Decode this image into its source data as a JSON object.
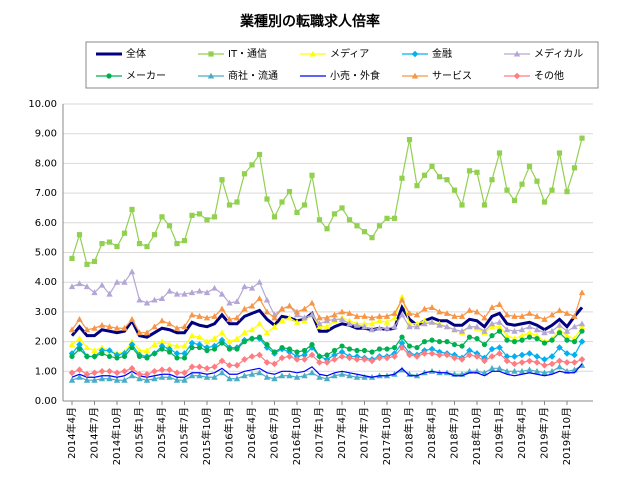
{
  "chart_data": {
    "type": "line",
    "title": "業種別の転職求人倍率",
    "categories": [
      "2014年4月",
      null,
      null,
      "2014年7月",
      null,
      null,
      "2014年10月",
      null,
      null,
      "2015年1月",
      null,
      null,
      "2015年4月",
      null,
      null,
      "2015年7月",
      null,
      null,
      "2015年10月",
      null,
      null,
      "2016年1月",
      null,
      null,
      "2016年4月",
      null,
      null,
      "2016年7月",
      null,
      null,
      "2016年10月",
      null,
      null,
      "2017年1月",
      null,
      null,
      "2017年4月",
      null,
      null,
      "2017年7月",
      null,
      null,
      "2017年10月",
      null,
      null,
      "2018年1月",
      null,
      null,
      "2018年4月",
      null,
      null,
      "2018年7月",
      null,
      null,
      "2018年10月",
      null,
      null,
      "2019年1月",
      null,
      null,
      "2019年4月",
      null,
      null,
      "2019年7月",
      null,
      null,
      "2019年10月",
      null,
      null
    ],
    "ylim": [
      0,
      10
    ],
    "yticks": [
      {
        "value": 0,
        "label": "0.00"
      },
      {
        "value": 1,
        "label": "1.00"
      },
      {
        "value": 2,
        "label": "2.00"
      },
      {
        "value": 3,
        "label": "3.00"
      },
      {
        "value": 4,
        "label": "4.00"
      },
      {
        "value": 5,
        "label": "5.00"
      },
      {
        "value": 6,
        "label": "6.00"
      },
      {
        "value": 7,
        "label": "7.00"
      },
      {
        "value": 8,
        "label": "8.00"
      },
      {
        "value": 9,
        "label": "9.00"
      },
      {
        "value": 10,
        "label": "10.00"
      }
    ],
    "grid": true,
    "series": [
      {
        "name": "全体",
        "color": "#000080",
        "marker": "none",
        "values": [
          2.2,
          2.5,
          2.2,
          2.2,
          2.4,
          2.35,
          2.3,
          2.35,
          2.7,
          2.2,
          2.15,
          2.3,
          2.45,
          2.4,
          2.3,
          2.3,
          2.65,
          2.55,
          2.5,
          2.6,
          2.9,
          2.6,
          2.6,
          2.85,
          2.95,
          3.05,
          2.75,
          2.55,
          2.85,
          2.8,
          2.7,
          2.75,
          2.95,
          2.35,
          2.35,
          2.5,
          2.6,
          2.55,
          2.45,
          2.45,
          2.4,
          2.45,
          2.4,
          2.45,
          3.15,
          2.75,
          2.55,
          2.7,
          2.8,
          2.7,
          2.7,
          2.55,
          2.55,
          2.75,
          2.7,
          2.5,
          2.85,
          2.95,
          2.6,
          2.55,
          2.6,
          2.65,
          2.55,
          2.4,
          2.55,
          2.75,
          2.5,
          2.85,
          3.15
        ]
      },
      {
        "name": "IT・通信",
        "color": "#92d050",
        "marker": "square",
        "values": [
          4.8,
          5.6,
          4.6,
          4.7,
          5.3,
          5.35,
          5.2,
          5.65,
          6.45,
          5.3,
          5.2,
          5.6,
          6.2,
          5.9,
          5.3,
          5.4,
          6.25,
          6.3,
          6.1,
          6.2,
          7.45,
          6.6,
          6.7,
          7.65,
          7.95,
          8.3,
          6.8,
          6.2,
          6.7,
          7.05,
          6.35,
          6.6,
          7.6,
          6.1,
          5.8,
          6.3,
          6.5,
          6.1,
          5.9,
          5.7,
          5.5,
          5.9,
          6.15,
          6.15,
          7.5,
          8.8,
          7.25,
          7.6,
          7.9,
          7.55,
          7.45,
          7.1,
          6.6,
          7.75,
          7.7,
          6.6,
          7.45,
          8.35,
          7.1,
          6.75,
          7.3,
          7.9,
          7.4,
          6.7,
          7.1,
          8.35,
          7.05,
          7.85,
          8.85
        ]
      },
      {
        "name": "メディア",
        "color": "#ffff00",
        "marker": "triangle",
        "values": [
          1.9,
          2.1,
          1.8,
          1.7,
          1.8,
          1.7,
          1.6,
          1.65,
          2.0,
          1.7,
          1.7,
          1.9,
          2.0,
          1.9,
          1.85,
          1.85,
          2.2,
          2.15,
          2.0,
          2.1,
          2.3,
          2.0,
          2.1,
          2.3,
          2.4,
          2.6,
          2.3,
          2.5,
          2.7,
          2.8,
          2.65,
          2.7,
          2.9,
          2.5,
          2.5,
          2.7,
          2.8,
          2.7,
          2.6,
          2.6,
          2.6,
          2.7,
          2.65,
          2.8,
          3.5,
          2.6,
          2.6,
          2.7,
          2.65,
          2.6,
          2.5,
          2.4,
          2.3,
          2.5,
          2.45,
          2.3,
          2.5,
          2.5,
          2.2,
          2.1,
          2.2,
          2.3,
          2.2,
          2.0,
          2.1,
          2.4,
          2.2,
          2.1,
          2.5
        ]
      },
      {
        "name": "金融",
        "color": "#00b0f0",
        "marker": "diamond",
        "values": [
          1.6,
          1.9,
          1.5,
          1.5,
          1.7,
          1.7,
          1.55,
          1.6,
          1.9,
          1.55,
          1.5,
          1.6,
          1.85,
          1.75,
          1.6,
          1.6,
          1.95,
          1.9,
          1.8,
          1.85,
          2.05,
          1.8,
          1.8,
          2.05,
          2.1,
          2.1,
          1.8,
          1.6,
          1.75,
          1.65,
          1.5,
          1.55,
          1.8,
          1.5,
          1.4,
          1.55,
          1.65,
          1.5,
          1.5,
          1.45,
          1.4,
          1.5,
          1.5,
          1.6,
          1.95,
          1.6,
          1.55,
          1.7,
          1.75,
          1.65,
          1.6,
          1.55,
          1.45,
          1.7,
          1.6,
          1.45,
          1.75,
          1.8,
          1.5,
          1.5,
          1.55,
          1.6,
          1.5,
          1.4,
          1.5,
          1.8,
          1.6,
          1.55,
          2.0
        ]
      },
      {
        "name": "メディカル",
        "color": "#b4a7d6",
        "marker": "triangle",
        "values": [
          3.85,
          3.95,
          3.85,
          3.65,
          3.9,
          3.6,
          4.0,
          4.0,
          4.35,
          3.4,
          3.3,
          3.4,
          3.45,
          3.7,
          3.6,
          3.6,
          3.65,
          3.7,
          3.65,
          3.8,
          3.6,
          3.3,
          3.35,
          3.85,
          3.8,
          4.0,
          3.4,
          2.9,
          3.1,
          3.2,
          2.9,
          2.8,
          2.9,
          2.6,
          2.7,
          2.75,
          2.75,
          2.6,
          2.55,
          2.5,
          2.4,
          2.45,
          2.45,
          2.5,
          2.9,
          2.5,
          2.5,
          2.6,
          2.65,
          2.55,
          2.5,
          2.4,
          2.35,
          2.5,
          2.5,
          2.35,
          2.6,
          2.65,
          2.4,
          2.35,
          2.4,
          2.5,
          2.4,
          2.3,
          2.35,
          2.55,
          2.35,
          2.5,
          2.6
        ]
      },
      {
        "name": "メーカー",
        "color": "#00b050",
        "marker": "circle",
        "values": [
          1.5,
          1.75,
          1.5,
          1.5,
          1.6,
          1.5,
          1.45,
          1.5,
          1.8,
          1.5,
          1.45,
          1.6,
          1.75,
          1.65,
          1.45,
          1.45,
          1.8,
          1.8,
          1.7,
          1.75,
          1.95,
          1.75,
          1.75,
          2.0,
          2.1,
          2.15,
          1.9,
          1.65,
          1.8,
          1.75,
          1.65,
          1.7,
          1.9,
          1.5,
          1.55,
          1.7,
          1.85,
          1.75,
          1.7,
          1.7,
          1.65,
          1.75,
          1.75,
          1.8,
          2.15,
          1.85,
          1.8,
          2.0,
          2.05,
          2.0,
          2.0,
          1.9,
          1.85,
          2.15,
          2.1,
          1.9,
          2.2,
          2.35,
          2.05,
          2.0,
          2.05,
          2.15,
          2.1,
          1.95,
          2.05,
          2.3,
          2.05,
          2.0,
          2.35
        ]
      },
      {
        "name": "商社・流通",
        "color": "#4bacc6",
        "marker": "triangle",
        "values": [
          0.7,
          0.8,
          0.7,
          0.7,
          0.75,
          0.75,
          0.7,
          0.7,
          0.85,
          0.75,
          0.7,
          0.75,
          0.8,
          0.8,
          0.7,
          0.7,
          0.85,
          0.85,
          0.8,
          0.8,
          0.95,
          0.75,
          0.75,
          0.85,
          0.9,
          0.95,
          0.8,
          0.75,
          0.85,
          0.85,
          0.8,
          0.85,
          0.95,
          0.8,
          0.75,
          0.85,
          0.9,
          0.85,
          0.8,
          0.8,
          0.8,
          0.85,
          0.85,
          0.9,
          1.05,
          0.9,
          0.85,
          0.95,
          1.0,
          0.95,
          0.95,
          0.9,
          0.9,
          1.0,
          1.0,
          0.95,
          1.1,
          1.1,
          1.0,
          1.0,
          1.0,
          1.05,
          1.0,
          0.95,
          1.0,
          1.15,
          1.0,
          1.05,
          1.2
        ]
      },
      {
        "name": "小売・外食",
        "color": "#0000ff",
        "marker": "none",
        "values": [
          0.8,
          0.9,
          0.8,
          0.8,
          0.85,
          0.85,
          0.8,
          0.85,
          1.0,
          0.85,
          0.8,
          0.85,
          0.9,
          0.9,
          0.8,
          0.8,
          0.95,
          0.95,
          0.9,
          0.95,
          1.1,
          0.9,
          0.9,
          1.0,
          1.05,
          1.1,
          0.95,
          0.9,
          1.0,
          1.0,
          0.95,
          1.0,
          1.15,
          0.9,
          0.85,
          0.95,
          1.0,
          0.95,
          0.9,
          0.85,
          0.8,
          0.85,
          0.85,
          0.9,
          1.1,
          0.85,
          0.85,
          0.95,
          1.0,
          0.95,
          0.95,
          0.85,
          0.85,
          0.95,
          0.95,
          0.85,
          1.0,
          1.0,
          0.9,
          0.85,
          0.9,
          0.95,
          0.9,
          0.85,
          0.9,
          1.0,
          0.95,
          0.95,
          1.25
        ]
      },
      {
        "name": "サービス",
        "color": "#f79646",
        "marker": "triangle",
        "values": [
          2.4,
          2.75,
          2.4,
          2.45,
          2.55,
          2.5,
          2.45,
          2.45,
          2.75,
          2.3,
          2.3,
          2.5,
          2.7,
          2.6,
          2.45,
          2.5,
          2.9,
          2.85,
          2.8,
          2.85,
          3.1,
          2.75,
          2.8,
          3.1,
          3.2,
          3.45,
          3.0,
          2.8,
          3.1,
          3.2,
          3.0,
          3.1,
          3.3,
          2.8,
          2.8,
          2.9,
          3.0,
          2.95,
          2.85,
          2.85,
          2.8,
          2.85,
          2.85,
          2.95,
          3.4,
          2.95,
          2.9,
          3.1,
          3.15,
          3.0,
          2.95,
          2.85,
          2.85,
          3.05,
          3.0,
          2.8,
          3.15,
          3.25,
          2.9,
          2.85,
          2.85,
          2.95,
          2.85,
          2.75,
          2.9,
          3.05,
          2.95,
          2.85,
          3.65
        ]
      },
      {
        "name": "その他",
        "color": "#ff7c80",
        "marker": "diamond",
        "values": [
          0.95,
          1.05,
          0.9,
          0.95,
          1.0,
          1.0,
          0.95,
          1.0,
          1.1,
          0.9,
          0.9,
          1.0,
          1.05,
          1.05,
          0.95,
          0.95,
          1.15,
          1.15,
          1.1,
          1.15,
          1.35,
          1.2,
          1.2,
          1.4,
          1.5,
          1.55,
          1.3,
          1.25,
          1.45,
          1.5,
          1.4,
          1.4,
          1.55,
          1.3,
          1.3,
          1.4,
          1.5,
          1.45,
          1.4,
          1.4,
          1.35,
          1.45,
          1.45,
          1.5,
          1.8,
          1.55,
          1.5,
          1.6,
          1.6,
          1.55,
          1.55,
          1.45,
          1.4,
          1.55,
          1.5,
          1.35,
          1.5,
          1.6,
          1.35,
          1.25,
          1.3,
          1.35,
          1.3,
          1.2,
          1.25,
          1.35,
          1.3,
          1.3,
          1.4
        ]
      }
    ]
  }
}
